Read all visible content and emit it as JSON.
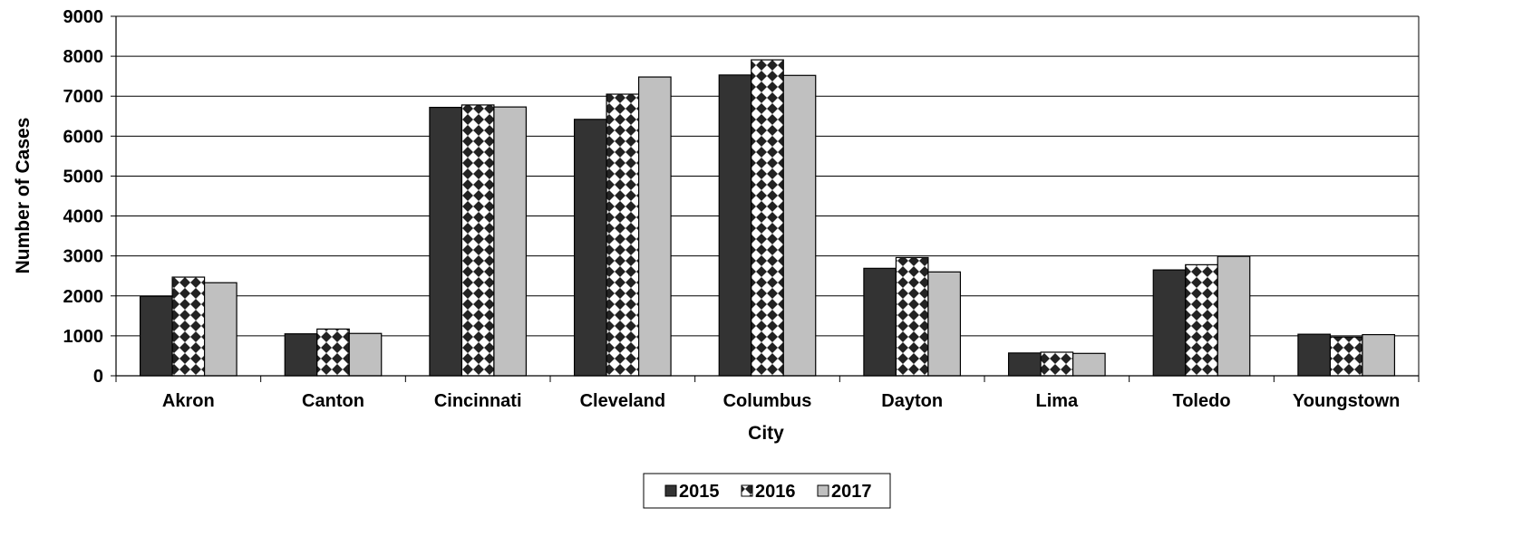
{
  "chart_data": {
    "type": "bar",
    "title": "",
    "xlabel": "City",
    "ylabel": "Number of Cases",
    "ylim": [
      0,
      9000
    ],
    "yticks": [
      "0",
      "1000",
      "2000",
      "3000",
      "4000",
      "5000",
      "6000",
      "7000",
      "8000",
      "9000"
    ],
    "grid": "horizontal",
    "legend_position": "bottom-center",
    "categories": [
      "Akron",
      "Canton",
      "Cincinnati",
      "Cleveland",
      "Columbus",
      "Dayton",
      "Lima",
      "Toledo",
      "Youngstown"
    ],
    "series": [
      {
        "name": "2015",
        "color": "#333333",
        "pattern": "solid-dark",
        "values": [
          1990,
          1050,
          6720,
          6420,
          7530,
          2690,
          570,
          2650,
          1040
        ]
      },
      {
        "name": "2016",
        "color": "#222222",
        "pattern": "diamond-checker",
        "values": [
          2470,
          1170,
          6780,
          7050,
          7910,
          2960,
          590,
          2780,
          970
        ]
      },
      {
        "name": "2017",
        "color": "#c0c0c0",
        "pattern": "solid-light",
        "values": [
          2330,
          1060,
          6730,
          7480,
          7520,
          2600,
          560,
          2990,
          1030
        ]
      }
    ]
  }
}
